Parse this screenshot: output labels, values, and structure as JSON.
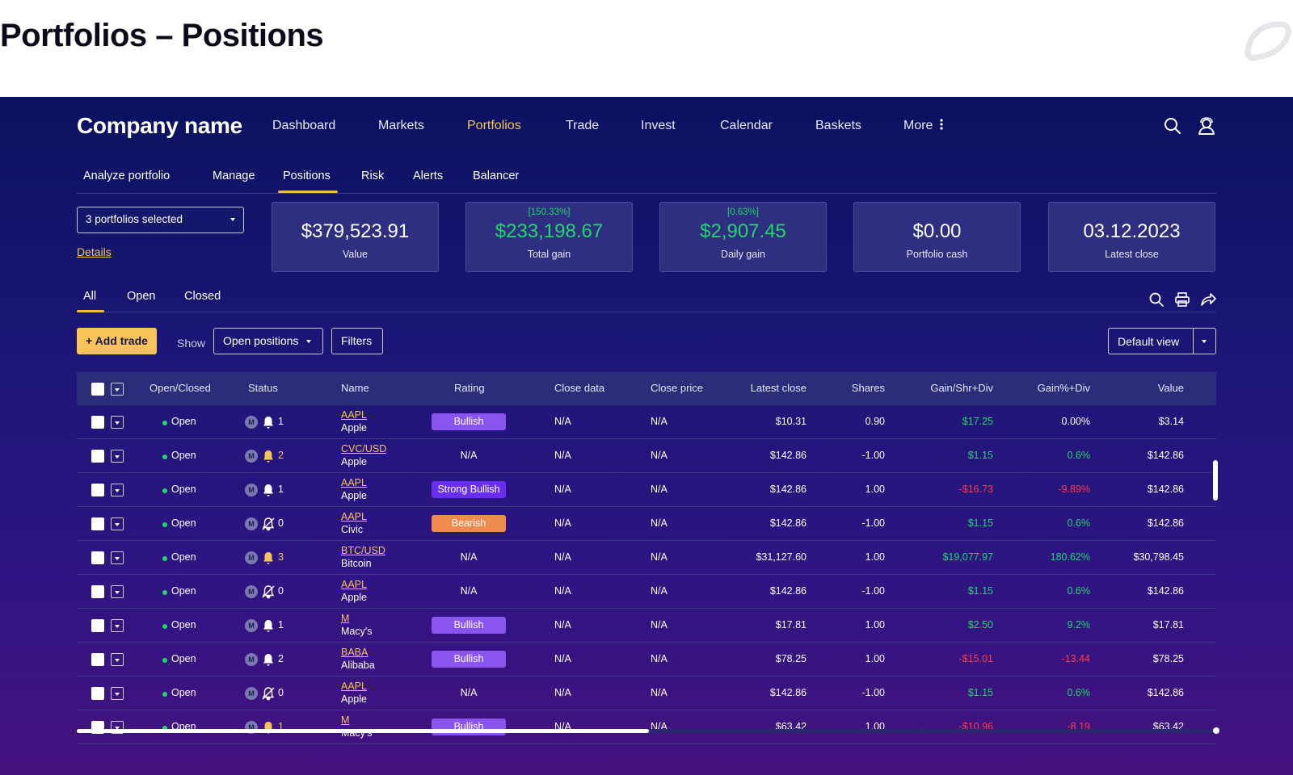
{
  "page": {
    "title": "Portfolios – Positions"
  },
  "brand": {
    "name": "Company name"
  },
  "nav": {
    "items": [
      "Dashboard",
      "Markets",
      "Portfolios",
      "Trade",
      "Invest",
      "Calendar",
      "Baskets",
      "More"
    ],
    "active": "Portfolios"
  },
  "subnav": {
    "items": [
      "Analyze portfolio",
      "Manage",
      "Positions",
      "Risk",
      "Alerts",
      "Balancer"
    ],
    "active": "Positions"
  },
  "portfolio_select": {
    "value": "3 portfolios selected"
  },
  "details_link": "Details",
  "stats": [
    {
      "pct": "",
      "value": "$379,523.91",
      "label": "Value",
      "tone": "neutral"
    },
    {
      "pct": "[150.33%]",
      "value": "$233,198.67",
      "label": "Total gain",
      "tone": "positive"
    },
    {
      "pct": "[0.63%]",
      "value": "$2,907.45",
      "label": "Daily gain",
      "tone": "positive"
    },
    {
      "pct": "",
      "value": "$0.00",
      "label": "Portfolio cash",
      "tone": "neutral"
    },
    {
      "pct": "",
      "value": "03.12.2023",
      "label": "Latest close",
      "tone": "neutral"
    }
  ],
  "filter_tabs": {
    "items": [
      "All",
      "Open",
      "Closed"
    ],
    "active": "All"
  },
  "toolbar": {
    "add_trade": "+ Add trade",
    "show_label": "Show",
    "show_value": "Open positions",
    "filters": "Filters",
    "view": "Default view"
  },
  "table": {
    "columns": [
      "Open/Closed",
      "Status",
      "Name",
      "Rating",
      "Close data",
      "Close price",
      "Latest close",
      "Shares",
      "Gain/Shr+Div",
      "Gain%+Div",
      "Value"
    ],
    "rows": [
      {
        "state": "Open",
        "badge": "M",
        "alert": "bell",
        "alert_color": "white",
        "alert_count": "1",
        "ticker": "AAPL",
        "company": "Apple",
        "rating": "Bullish",
        "rating_color": "#8a55ee",
        "close_data": "N/A",
        "close_price": "N/A",
        "latest_close": "$10.31",
        "shares": "0.90",
        "gain_shr": "$17.25",
        "gain_shr_tone": "pos",
        "gain_pct": "0.00%",
        "gain_pct_tone": "neutral",
        "value": "$3.14"
      },
      {
        "state": "Open",
        "badge": "M",
        "alert": "bell",
        "alert_color": "yellow",
        "alert_count": "2",
        "ticker": "CVC/USD",
        "company": "Apple",
        "rating": "N/A",
        "rating_color": "",
        "close_data": "N/A",
        "close_price": "N/A",
        "latest_close": "$142.86",
        "shares": "-1.00",
        "gain_shr": "$1.15",
        "gain_shr_tone": "pos",
        "gain_pct": "0.6%",
        "gain_pct_tone": "pos",
        "value": "$142.86"
      },
      {
        "state": "Open",
        "badge": "M",
        "alert": "bell",
        "alert_color": "white",
        "alert_count": "1",
        "ticker": "AAPL",
        "company": "Apple",
        "rating": "Strong Bullish",
        "rating_color": "#6a2ef0",
        "close_data": "N/A",
        "close_price": "N/A",
        "latest_close": "$142.86",
        "shares": "1.00",
        "gain_shr": "-$16.73",
        "gain_shr_tone": "neg",
        "gain_pct": "-9.89%",
        "gain_pct_tone": "neg",
        "value": "$142.86"
      },
      {
        "state": "Open",
        "badge": "M",
        "alert": "bell-off",
        "alert_color": "white",
        "alert_count": "0",
        "ticker": "AAPL",
        "company": "Civic",
        "rating": "Bearish",
        "rating_color": "#ee8c50",
        "close_data": "N/A",
        "close_price": "N/A",
        "latest_close": "$142.86",
        "shares": "-1.00",
        "gain_shr": "$1.15",
        "gain_shr_tone": "pos",
        "gain_pct": "0.6%",
        "gain_pct_tone": "pos",
        "value": "$142.86"
      },
      {
        "state": "Open",
        "badge": "M",
        "alert": "bell",
        "alert_color": "yellow",
        "alert_count": "3",
        "ticker": "BTC/USD",
        "company": "Bitcoin",
        "rating": "N/A",
        "rating_color": "",
        "close_data": "N/A",
        "close_price": "N/A",
        "latest_close": "$31,127.60",
        "shares": "1.00",
        "gain_shr": "$19,077.97",
        "gain_shr_tone": "pos",
        "gain_pct": "180.62%",
        "gain_pct_tone": "pos",
        "value": "$30,798.45"
      },
      {
        "state": "Open",
        "badge": "M",
        "alert": "bell-off",
        "alert_color": "white",
        "alert_count": "0",
        "ticker": "AAPL",
        "company": "Apple",
        "rating": "N/A",
        "rating_color": "",
        "close_data": "N/A",
        "close_price": "N/A",
        "latest_close": "$142.86",
        "shares": "-1.00",
        "gain_shr": "$1.15",
        "gain_shr_tone": "pos",
        "gain_pct": "0.6%",
        "gain_pct_tone": "pos",
        "value": "$142.86"
      },
      {
        "state": "Open",
        "badge": "M",
        "alert": "bell",
        "alert_color": "white",
        "alert_count": "1",
        "ticker": "M",
        "company": "Macy's",
        "rating": "Bullish",
        "rating_color": "#8a55ee",
        "close_data": "N/A",
        "close_price": "N/A",
        "latest_close": "$17.81",
        "shares": "1.00",
        "gain_shr": "$2.50",
        "gain_shr_tone": "pos",
        "gain_pct": "9.2%",
        "gain_pct_tone": "pos",
        "value": "$17.81"
      },
      {
        "state": "Open",
        "badge": "M",
        "alert": "bell",
        "alert_color": "white",
        "alert_count": "2",
        "ticker": "BABA",
        "company": "Alibaba",
        "rating": "Bullish",
        "rating_color": "#8a55ee",
        "close_data": "N/A",
        "close_price": "N/A",
        "latest_close": "$78.25",
        "shares": "1.00",
        "gain_shr": "-$15.01",
        "gain_shr_tone": "neg",
        "gain_pct": "-13.44",
        "gain_pct_tone": "neg",
        "value": "$78.25"
      },
      {
        "state": "Open",
        "badge": "M",
        "alert": "bell-off",
        "alert_color": "white",
        "alert_count": "0",
        "ticker": "AAPL",
        "company": "Apple",
        "rating": "N/A",
        "rating_color": "",
        "close_data": "N/A",
        "close_price": "N/A",
        "latest_close": "$142.86",
        "shares": "-1.00",
        "gain_shr": "$1.15",
        "gain_shr_tone": "pos",
        "gain_pct": "0.6%",
        "gain_pct_tone": "pos",
        "value": "$142.86"
      },
      {
        "state": "Open",
        "badge": "M",
        "alert": "bell",
        "alert_color": "yellow",
        "alert_count": "1",
        "ticker": "M",
        "company": "Macy's",
        "rating": "Bullish",
        "rating_color": "#8a55ee",
        "close_data": "N/A",
        "close_price": "N/A",
        "latest_close": "$63.42",
        "shares": "1.00",
        "gain_shr": "-$10.96",
        "gain_shr_tone": "neg",
        "gain_pct": "-8.19",
        "gain_pct_tone": "neg",
        "value": "$63.42"
      }
    ]
  },
  "colors": {
    "accent": "#f7c35a",
    "positive": "#22d66a",
    "negative": "#ff3b4a",
    "bell_yellow": "#f7c35a"
  },
  "icons": {
    "header": [
      "search-icon",
      "user-icon"
    ],
    "table_tools": [
      "search-icon",
      "print-icon",
      "share-icon"
    ]
  }
}
